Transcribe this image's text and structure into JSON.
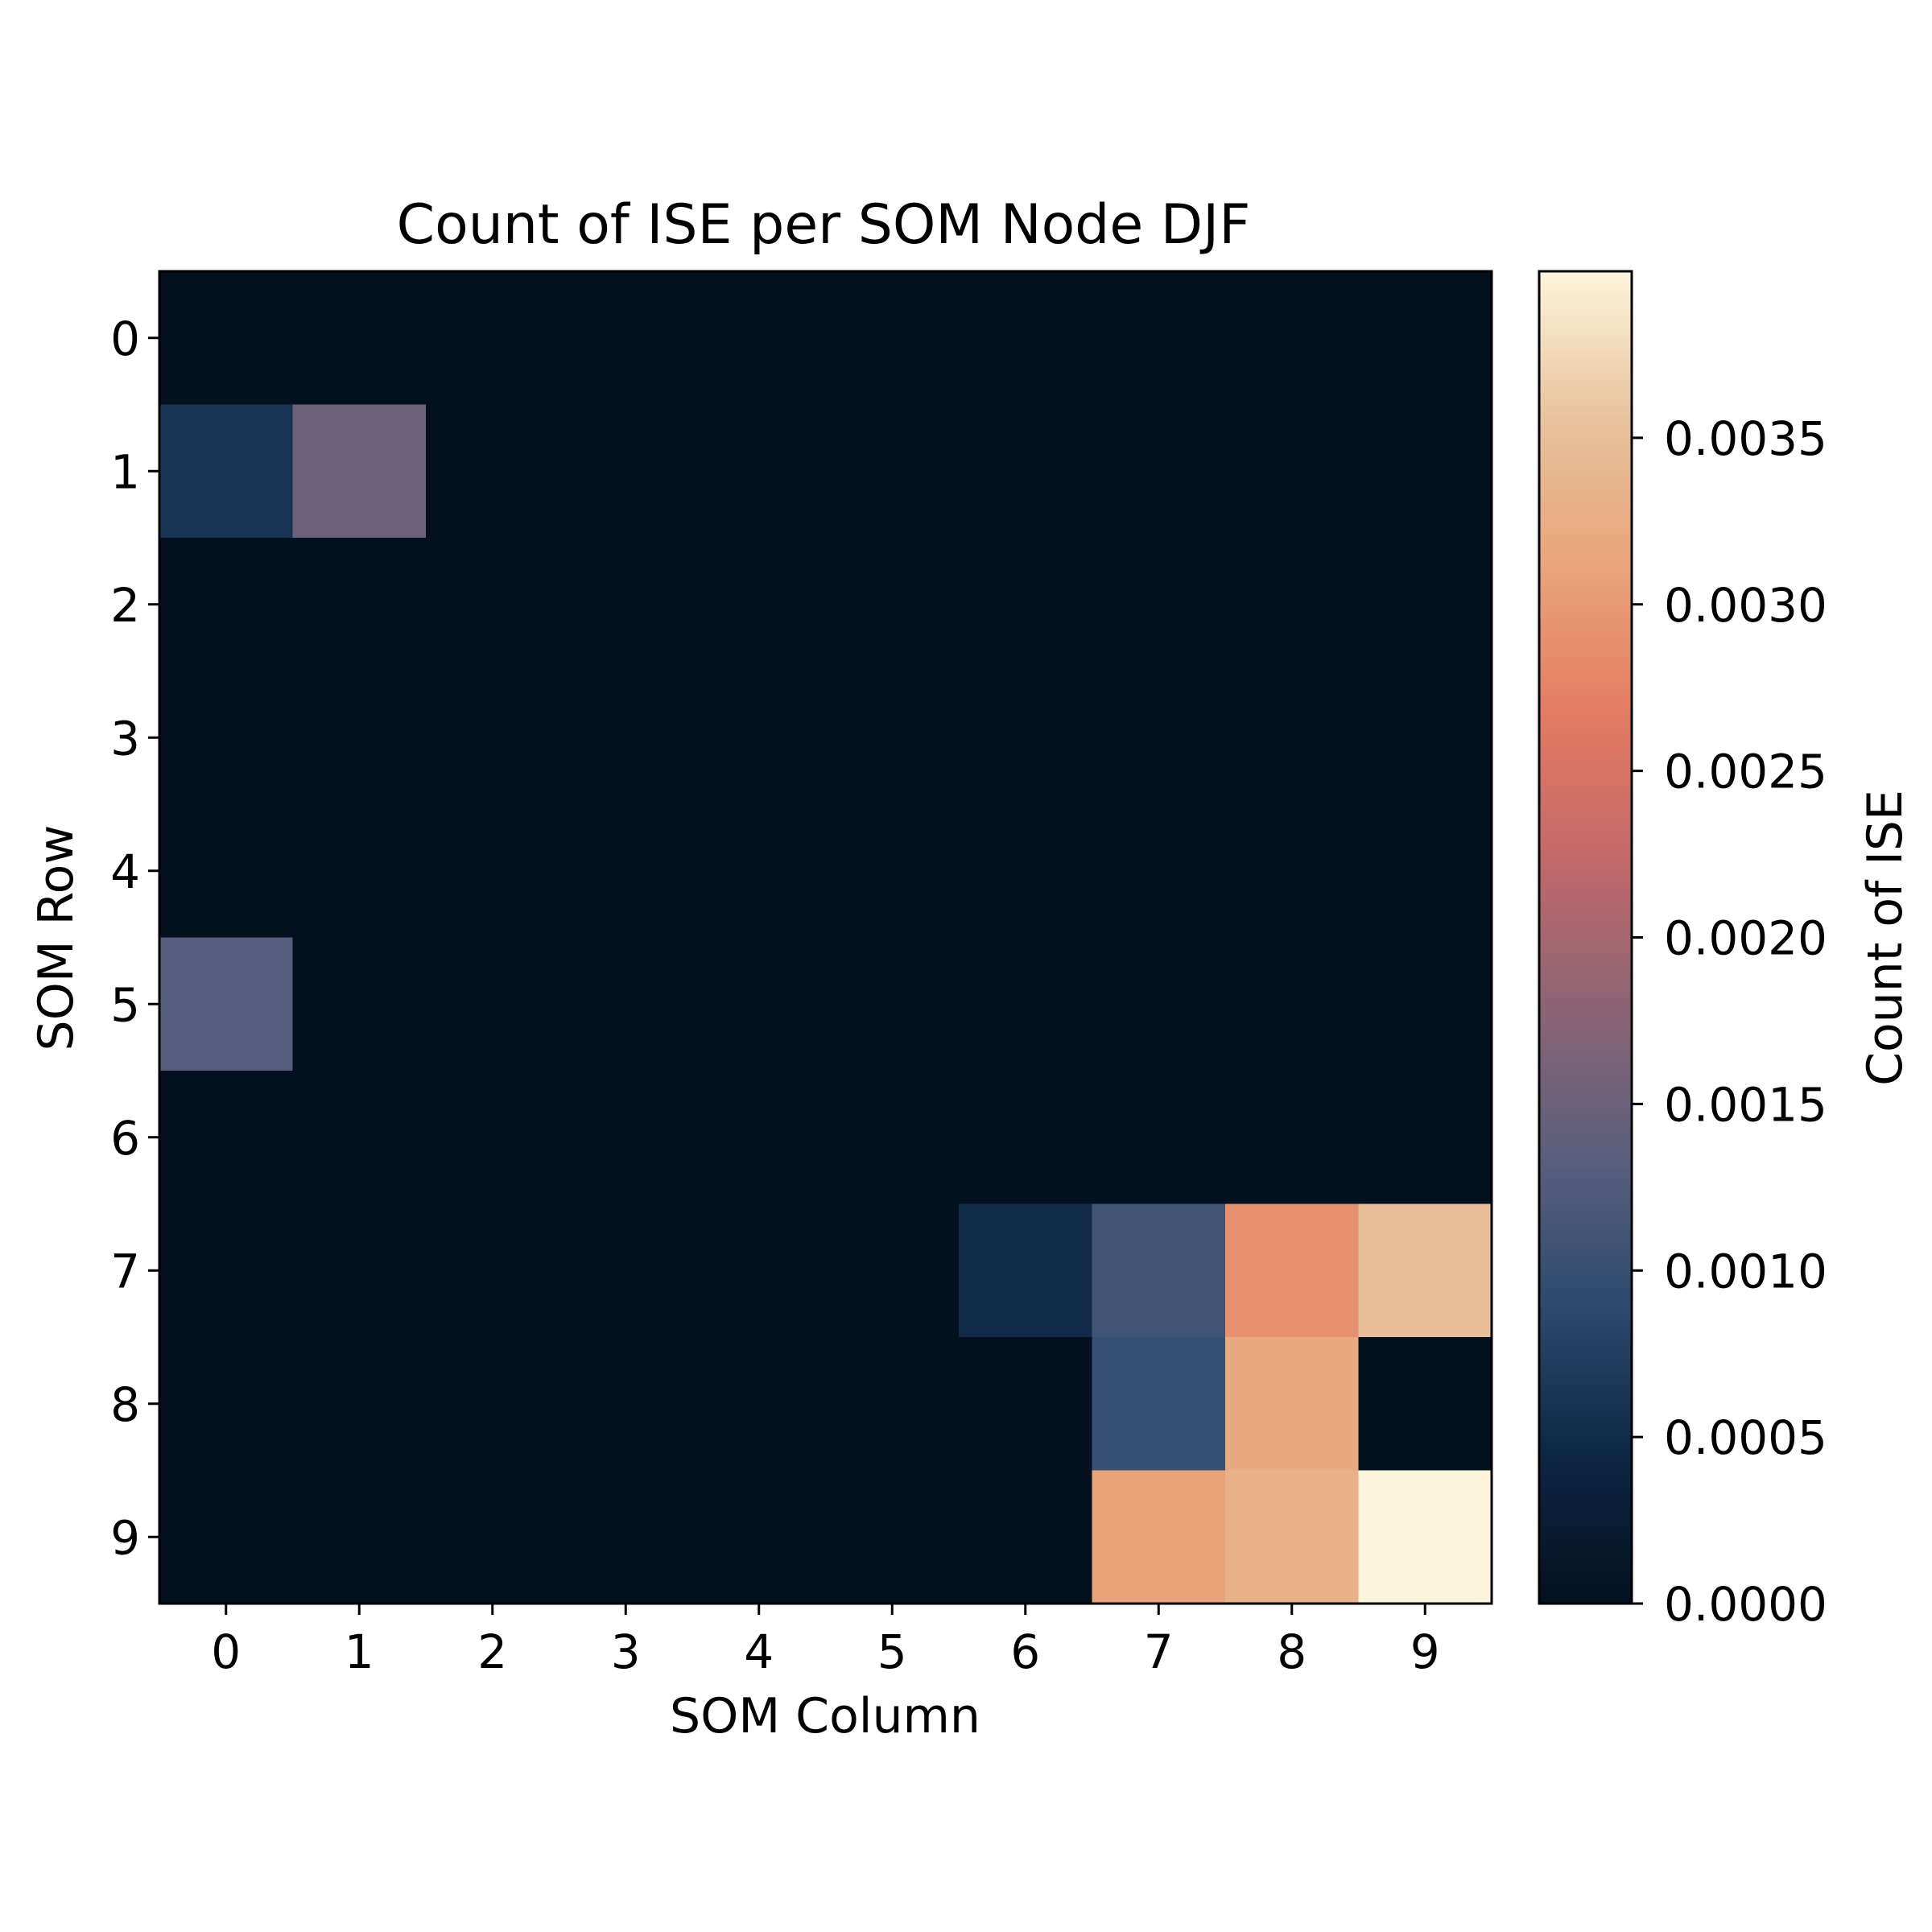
{
  "chart_data": {
    "type": "heatmap",
    "title": "Count of ISE per SOM Node DJF",
    "xlabel": "SOM Column",
    "ylabel": "SOM Row",
    "colorbar_label": "Count of ISE",
    "rows": [
      0,
      1,
      2,
      3,
      4,
      5,
      6,
      7,
      8,
      9
    ],
    "cols": [
      0,
      1,
      2,
      3,
      4,
      5,
      6,
      7,
      8,
      9
    ],
    "values": [
      [
        0,
        0,
        0,
        0,
        0,
        0,
        0,
        0,
        0,
        0
      ],
      [
        0.0006,
        0.0015,
        0,
        0,
        0,
        0,
        0,
        0,
        0,
        0
      ],
      [
        0,
        0,
        0,
        0,
        0,
        0,
        0,
        0,
        0,
        0
      ],
      [
        0,
        0,
        0,
        0,
        0,
        0,
        0,
        0,
        0,
        0
      ],
      [
        0,
        0,
        0,
        0,
        0,
        0,
        0,
        0,
        0,
        0
      ],
      [
        0.0013,
        0,
        0,
        0,
        0,
        0,
        0,
        0,
        0,
        0
      ],
      [
        0,
        0,
        0,
        0,
        0,
        0,
        0,
        0,
        0,
        0
      ],
      [
        0,
        0,
        0,
        0,
        0,
        0,
        0.0005,
        0.0011,
        0.0029,
        0.0035
      ],
      [
        0,
        0,
        0,
        0,
        0,
        0,
        0,
        0.001,
        0.0032,
        0
      ],
      [
        0,
        0,
        0,
        0,
        0,
        0,
        0,
        0.0031,
        0.0033,
        0.004
      ]
    ],
    "vmin": 0,
    "vmax": 0.004,
    "colorbar_ticks": [
      "0.0000",
      "0.0005",
      "0.0010",
      "0.0015",
      "0.0020",
      "0.0025",
      "0.0030",
      "0.0035"
    ],
    "colormap": [
      "#03111f",
      "#0d2644",
      "#2b4a6e",
      "#5a5f7d",
      "#8a6475",
      "#c1686a",
      "#e37b62",
      "#e9a47a",
      "#e8c29c",
      "#fdf4dc"
    ],
    "grid": false
  }
}
